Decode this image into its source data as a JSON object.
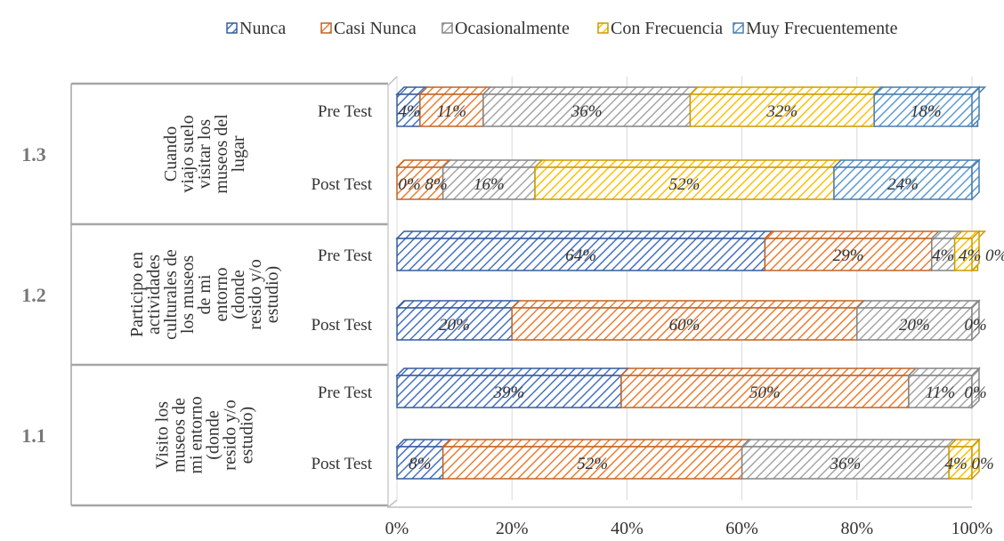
{
  "chart_data": {
    "type": "bar",
    "orientation": "horizontal",
    "stacked": "percent",
    "grid": true,
    "legend_position": "top",
    "x_ticks": [
      "0%",
      "20%",
      "40%",
      "60%",
      "80%",
      "100%"
    ],
    "xlim": [
      0,
      100
    ],
    "series": [
      {
        "name": "Nunca",
        "color": "#4472c4"
      },
      {
        "name": "Casi Nunca",
        "color": "#ed7d31"
      },
      {
        "name": "Ocasionalmente",
        "color": "#a5a5a5"
      },
      {
        "name": "Con Frecuencia",
        "color": "#ffc000"
      },
      {
        "name": "Muy Frecuentemente",
        "color": "#5b9bd5"
      }
    ],
    "groups": [
      {
        "number": "1.3",
        "label_lines": [
          "Cuando",
          "viajo suelo",
          "visitar los",
          "museos del",
          "lugar"
        ],
        "bars": [
          {
            "category": "Pre Test",
            "values": [
              4,
              11,
              36,
              32,
              18
            ],
            "labels": [
              "4%",
              "11%",
              "36%",
              "32%",
              "18%"
            ]
          },
          {
            "category": "Post Test",
            "values": [
              0,
              8,
              16,
              52,
              24
            ],
            "labels": [
              "0%",
              "8%",
              "16%",
              "52%",
              "24%"
            ]
          }
        ]
      },
      {
        "number": "1.2",
        "label_lines": [
          "Participo en",
          "actividades",
          "culturales de",
          "los museos",
          "de mi",
          "entorno",
          "(donde",
          "resido y/o",
          "estudio)"
        ],
        "bars": [
          {
            "category": "Pre Test",
            "values": [
              64,
              29,
              4,
              4,
              0
            ],
            "labels": [
              "64%",
              "29%",
              "4%",
              "4%",
              "0%"
            ]
          },
          {
            "category": "Post Test",
            "values": [
              20,
              60,
              20,
              0,
              0
            ],
            "labels": [
              "20%",
              "60%",
              "20%",
              "",
              "0%"
            ]
          }
        ]
      },
      {
        "number": "1.1",
        "label_lines": [
          "Visito los",
          "museos de",
          "mi entorno",
          "(donde",
          "resido y/o",
          "estudio)"
        ],
        "bars": [
          {
            "category": "Pre Test",
            "values": [
              39,
              50,
              11,
              0,
              0
            ],
            "labels": [
              "39%",
              "50%",
              "11%",
              "",
              "0%"
            ]
          },
          {
            "category": "Post Test",
            "values": [
              8,
              52,
              36,
              4,
              0
            ],
            "labels": [
              "8%",
              "52%",
              "36%",
              "4%",
              "0%"
            ]
          }
        ]
      }
    ]
  }
}
